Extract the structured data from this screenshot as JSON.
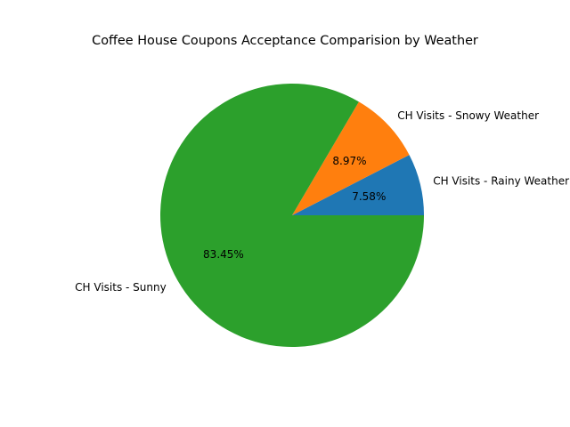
{
  "chart_data": {
    "type": "pie",
    "title": "Coffee House Coupons Acceptance Comparision by Weather",
    "slices": [
      {
        "label": "CH Visits - Rainy Weather",
        "value": 7.58,
        "pct_label": "7.58%",
        "color": "#1f77b4"
      },
      {
        "label": "CH Visits - Snowy Weather",
        "value": 8.97,
        "pct_label": "8.97%",
        "color": "#ff7f0e"
      },
      {
        "label": "CH Visits - Sunny",
        "value": 83.45,
        "pct_label": "83.45%",
        "color": "#2ca02c"
      }
    ],
    "start_angle": 0,
    "direction": "counterclockwise"
  }
}
